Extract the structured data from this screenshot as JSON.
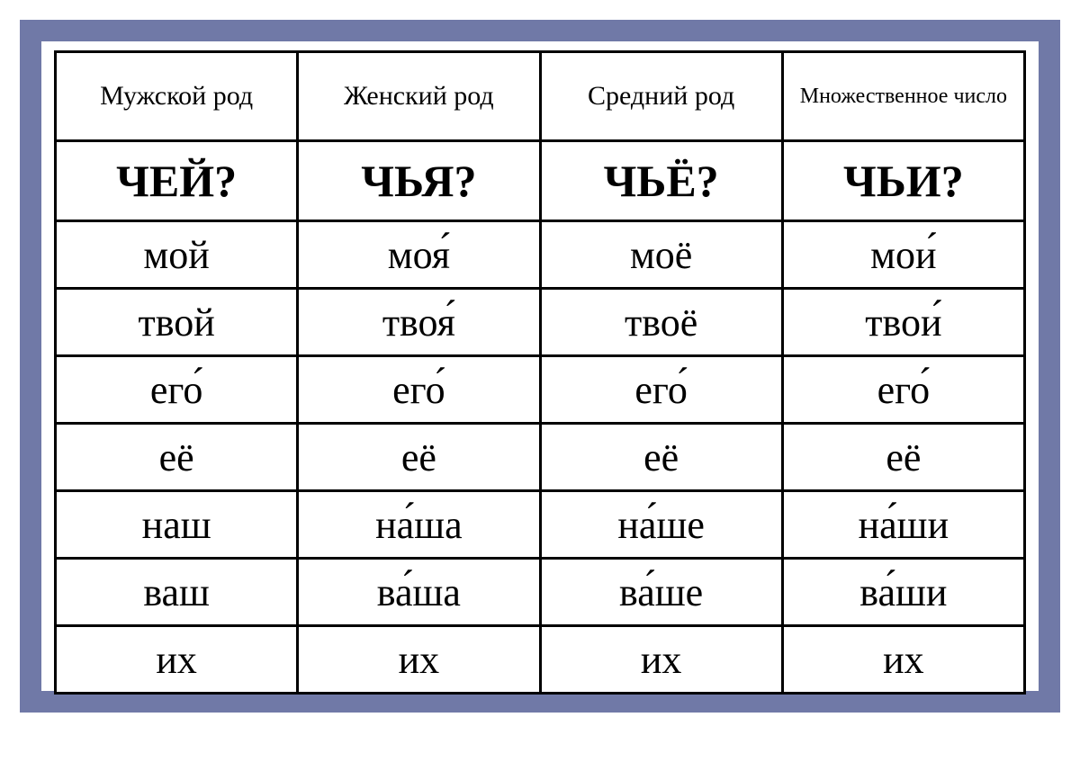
{
  "table": {
    "columns": [
      {
        "label": "Мужской род",
        "small": false
      },
      {
        "label": "Женский род",
        "small": false
      },
      {
        "label": "Средний род",
        "small": false
      },
      {
        "label": "Множественное число",
        "small": true
      }
    ],
    "questions": [
      "ЧЕЙ?",
      "ЧЬЯ?",
      "ЧЬЁ?",
      "ЧЬИ?"
    ],
    "rows": [
      [
        "мой",
        "моя́",
        "моё",
        "мои́"
      ],
      [
        "твой",
        "твоя́",
        "твоё",
        "твои́"
      ],
      [
        "его́",
        "его́",
        "его́",
        "его́"
      ],
      [
        "её",
        "её",
        "её",
        "её"
      ],
      [
        "наш",
        "на́ша",
        "на́ше",
        "на́ши"
      ],
      [
        "ваш",
        "ва́ша",
        "ва́ше",
        "ва́ши"
      ],
      [
        "их",
        "их",
        "их",
        "их"
      ]
    ],
    "border_color": "#7079a7",
    "cell_border_color": "#000000",
    "background_color": "#ffffff",
    "header_fontsize": 30,
    "header_small_fontsize": 24,
    "question_fontsize": 50,
    "data_fontsize": 44
  }
}
